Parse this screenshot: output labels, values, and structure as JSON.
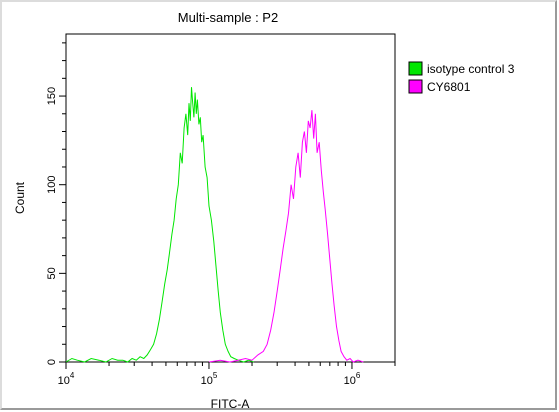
{
  "chart_data": {
    "type": "line",
    "title": "Multi-sample : P2",
    "xlabel": "FITC-A",
    "ylabel": "Count",
    "x_scale": "log",
    "xlim": [
      10000,
      2000000
    ],
    "ylim": [
      0,
      185
    ],
    "x_ticks": [
      {
        "value": 10000,
        "base": "10",
        "exp": "4"
      },
      {
        "value": 100000,
        "base": "10",
        "exp": "5"
      },
      {
        "value": 1000000,
        "base": "10",
        "exp": "6"
      }
    ],
    "y_ticks": [
      {
        "value": 0,
        "label": "0"
      },
      {
        "value": 50,
        "label": "50"
      },
      {
        "value": 100,
        "label": "100"
      },
      {
        "value": 150,
        "label": "150"
      }
    ],
    "legend_position": "right",
    "series": [
      {
        "name": "isotype control 3",
        "color": "#00e600",
        "points": [
          [
            10000,
            0
          ],
          [
            11000,
            2
          ],
          [
            12000,
            1
          ],
          [
            13500,
            0
          ],
          [
            15000,
            2
          ],
          [
            17000,
            1
          ],
          [
            19000,
            0
          ],
          [
            21000,
            2
          ],
          [
            23000,
            1
          ],
          [
            25000,
            1
          ],
          [
            27000,
            0
          ],
          [
            29000,
            2
          ],
          [
            31000,
            1
          ],
          [
            33000,
            3
          ],
          [
            35000,
            2
          ],
          [
            37000,
            4
          ],
          [
            39000,
            7
          ],
          [
            41000,
            10
          ],
          [
            43000,
            16
          ],
          [
            45000,
            24
          ],
          [
            47000,
            34
          ],
          [
            49000,
            44
          ],
          [
            51000,
            52
          ],
          [
            53000,
            62
          ],
          [
            55000,
            72
          ],
          [
            57000,
            80
          ],
          [
            59000,
            92
          ],
          [
            61000,
            100
          ],
          [
            63000,
            118
          ],
          [
            65000,
            112
          ],
          [
            67000,
            132
          ],
          [
            69000,
            140
          ],
          [
            71000,
            128
          ],
          [
            72500,
            146
          ],
          [
            74000,
            136
          ],
          [
            75500,
            155
          ],
          [
            77000,
            146
          ],
          [
            78500,
            138
          ],
          [
            80000,
            152
          ],
          [
            81500,
            140
          ],
          [
            83000,
            148
          ],
          [
            85000,
            134
          ],
          [
            87000,
            138
          ],
          [
            89000,
            124
          ],
          [
            91000,
            128
          ],
          [
            94000,
            110
          ],
          [
            97000,
            104
          ],
          [
            100000,
            88
          ],
          [
            104000,
            80
          ],
          [
            108000,
            68
          ],
          [
            112000,
            54
          ],
          [
            116000,
            40
          ],
          [
            120000,
            28
          ],
          [
            125000,
            18
          ],
          [
            130000,
            10
          ],
          [
            136000,
            6
          ],
          [
            142000,
            3
          ],
          [
            150000,
            2
          ],
          [
            160000,
            1
          ],
          [
            175000,
            0
          ],
          [
            190000,
            1
          ],
          [
            205000,
            0
          ]
        ]
      },
      {
        "name": "CY6801",
        "color": "#ff00ff",
        "points": [
          [
            100000,
            0
          ],
          [
            120000,
            1
          ],
          [
            140000,
            0
          ],
          [
            160000,
            1
          ],
          [
            180000,
            2
          ],
          [
            200000,
            1
          ],
          [
            220000,
            4
          ],
          [
            240000,
            6
          ],
          [
            255000,
            10
          ],
          [
            270000,
            18
          ],
          [
            285000,
            28
          ],
          [
            300000,
            40
          ],
          [
            315000,
            52
          ],
          [
            330000,
            64
          ],
          [
            345000,
            74
          ],
          [
            360000,
            84
          ],
          [
            375000,
            100
          ],
          [
            390000,
            92
          ],
          [
            405000,
            110
          ],
          [
            420000,
            118
          ],
          [
            435000,
            104
          ],
          [
            450000,
            124
          ],
          [
            465000,
            130
          ],
          [
            480000,
            118
          ],
          [
            495000,
            136
          ],
          [
            510000,
            132
          ],
          [
            525000,
            142
          ],
          [
            540000,
            126
          ],
          [
            555000,
            140
          ],
          [
            570000,
            118
          ],
          [
            590000,
            124
          ],
          [
            610000,
            108
          ],
          [
            630000,
            96
          ],
          [
            650000,
            86
          ],
          [
            675000,
            72
          ],
          [
            700000,
            58
          ],
          [
            725000,
            44
          ],
          [
            750000,
            32
          ],
          [
            780000,
            20
          ],
          [
            810000,
            12
          ],
          [
            840000,
            6
          ],
          [
            880000,
            3
          ],
          [
            920000,
            1
          ],
          [
            970000,
            2
          ],
          [
            1020000,
            0
          ],
          [
            1100000,
            1
          ],
          [
            1200000,
            0
          ]
        ]
      }
    ]
  }
}
